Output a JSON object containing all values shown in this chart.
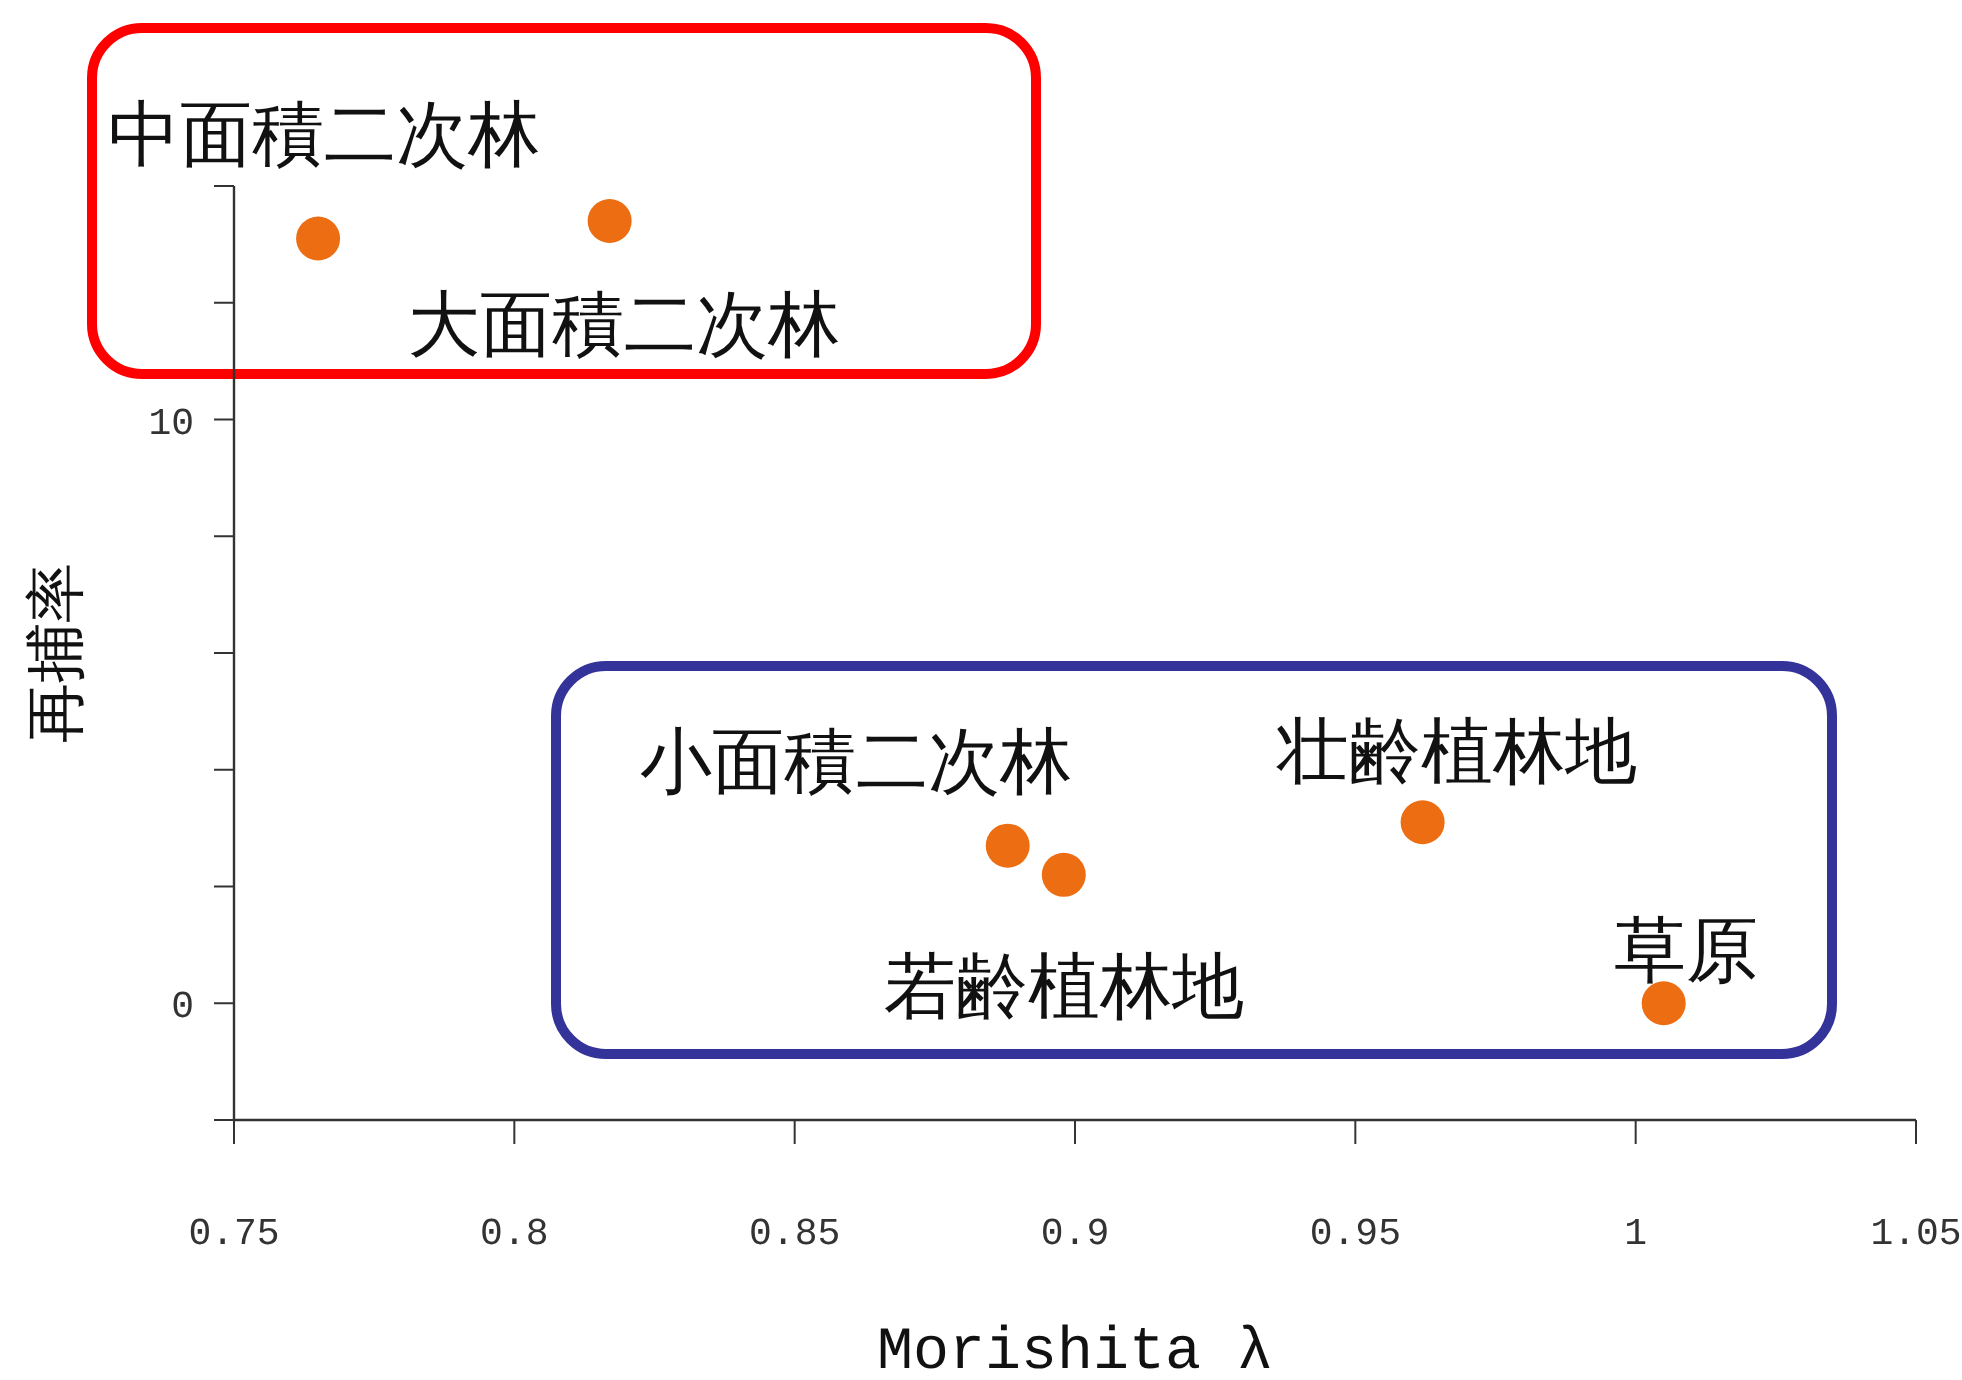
{
  "chart_data": {
    "type": "scatter",
    "xlabel": "Morishita λ",
    "ylabel": "再捕率",
    "x": [
      0.765,
      0.817,
      0.888,
      0.898,
      0.962,
      1.005
    ],
    "series": [
      {
        "color": "#ed6d12",
        "values": [
          13.1,
          13.4,
          2.7,
          2.2,
          3.1,
          0
        ]
      }
    ],
    "marker": "circle",
    "annotations": [
      {
        "text": "中面積二次林",
        "x": 0.765,
        "y": 13.1
      },
      {
        "text": "大面積二次林",
        "x": 0.817,
        "y": 13.4
      },
      {
        "text": "小面積二次林",
        "x": 0.888,
        "y": 2.7
      },
      {
        "text": "若齢植林地",
        "x": 0.898,
        "y": 2.2
      },
      {
        "text": "壮齢植林地",
        "x": 0.962,
        "y": 3.1
      },
      {
        "text": "草原",
        "x": 1.005,
        "y": 0
      }
    ],
    "xlim": [
      0.75,
      1.05
    ],
    "xticks": [
      0.75,
      0.8,
      0.85,
      0.9,
      0.95,
      1,
      1.05
    ],
    "ylim": [
      -2,
      14
    ],
    "yticks": [
      {
        "value": -2,
        "label": null
      },
      0,
      {
        "value": 2,
        "label": null
      },
      {
        "value": 4,
        "label": null
      },
      {
        "value": 6,
        "label": null
      },
      {
        "value": 8,
        "label": null
      },
      10,
      {
        "value": 12,
        "label": null
      },
      {
        "value": 14,
        "label": null
      }
    ]
  }
}
